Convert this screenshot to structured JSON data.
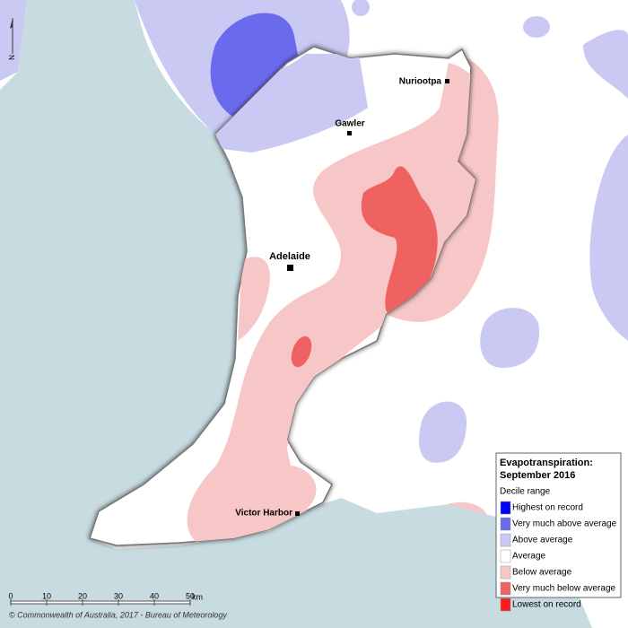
{
  "map": {
    "towns": [
      "Nuriootpa",
      "Gawler",
      "Adelaide",
      "Victor Harbor"
    ],
    "north": "N",
    "copyright": "© Commonwealth of Australia, 2017 - Bureau of Meteorology"
  },
  "legend": {
    "title": [
      "Evapotranspiration:",
      "September 2016"
    ],
    "subtitle": "Decile range",
    "entries": [
      {
        "label": "Highest on record",
        "color": "#0000ff"
      },
      {
        "label": "Very much above average",
        "color": "#6a6aee"
      },
      {
        "label": "Above average",
        "color": "#c9c9f4"
      },
      {
        "label": "Average",
        "color": "#ffffff"
      },
      {
        "label": "Below average",
        "color": "#f7c7c7"
      },
      {
        "label": "Very much below average",
        "color": "#ef6262"
      },
      {
        "label": "Lowest on record",
        "color": "#ff1a1a"
      }
    ]
  },
  "scale": {
    "ticks": [
      0,
      10,
      20,
      30,
      40,
      50
    ],
    "unit": "km"
  }
}
